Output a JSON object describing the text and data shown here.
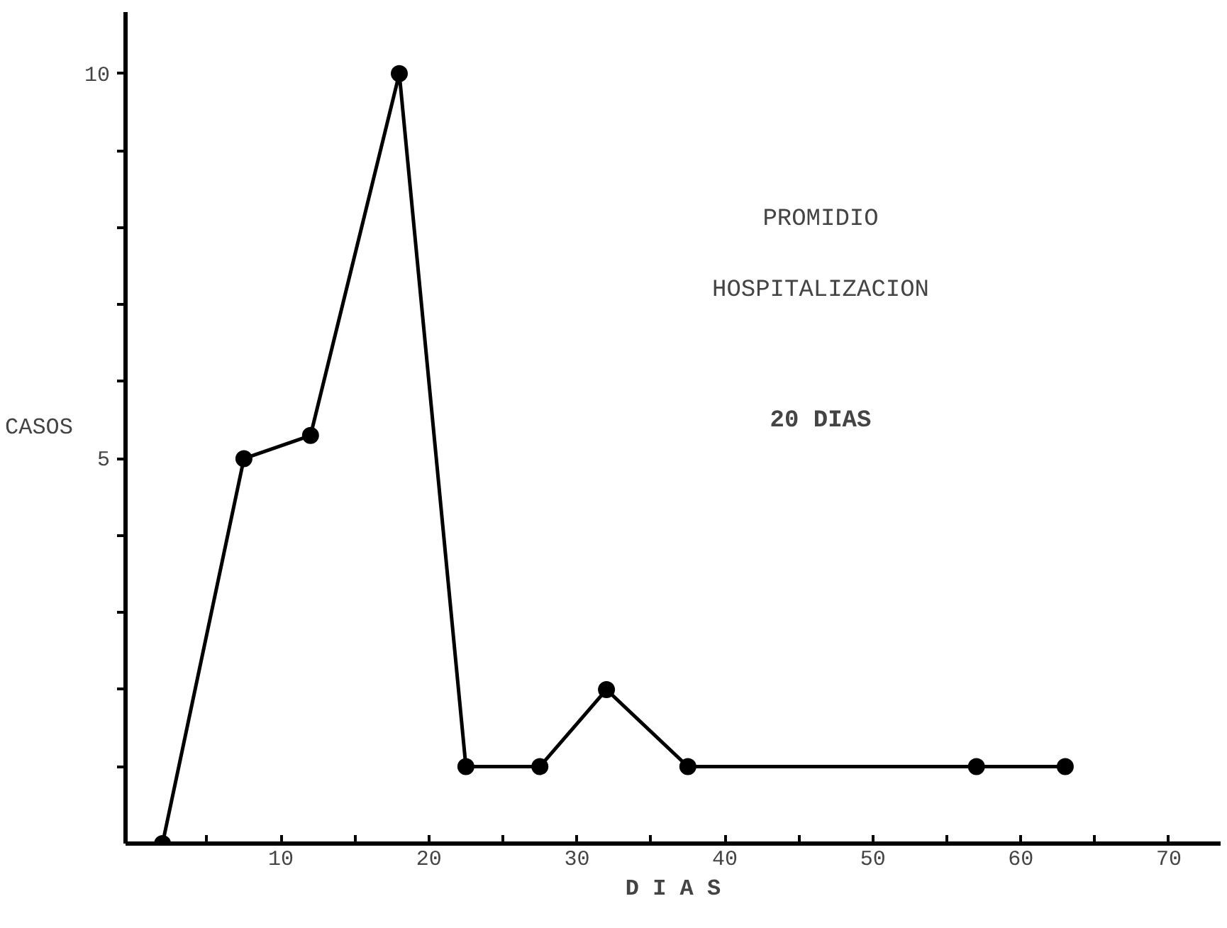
{
  "chart_data": {
    "type": "line",
    "xlabel": "D I A S",
    "ylabel": "CASOS",
    "annotations": [
      "PROMIDIO",
      "HOSPITALIZACION",
      "20 DIAS"
    ],
    "x": [
      2,
      7.5,
      12,
      18,
      22.5,
      27.5,
      32,
      37.5,
      57,
      63
    ],
    "series": [
      {
        "color": "#000000",
        "values": [
          0,
          5,
          5.3,
          10,
          1,
          1,
          2,
          1,
          1,
          1
        ]
      }
    ],
    "marker": "circle",
    "line_style": "solid",
    "grid": false,
    "xlim": [
      -0.5,
      73.5
    ],
    "ylim": [
      0,
      10.8
    ],
    "xticks": [
      {
        "value": 5,
        "label": null
      },
      10,
      {
        "value": 15,
        "label": null
      },
      20,
      {
        "value": 25,
        "label": null
      },
      30,
      {
        "value": 35,
        "label": null
      },
      40,
      {
        "value": 45,
        "label": null
      },
      50,
      {
        "value": 55,
        "label": null
      },
      60,
      {
        "value": 65,
        "label": null
      },
      70
    ],
    "yticks": [
      {
        "value": 1,
        "label": null
      },
      {
        "value": 2,
        "label": null
      },
      {
        "value": 3,
        "label": null
      },
      {
        "value": 4,
        "label": null
      },
      5,
      {
        "value": 6,
        "label": null
      },
      {
        "value": 7,
        "label": null
      },
      {
        "value": 8,
        "label": null
      },
      {
        "value": 9,
        "label": null
      },
      10
    ]
  }
}
